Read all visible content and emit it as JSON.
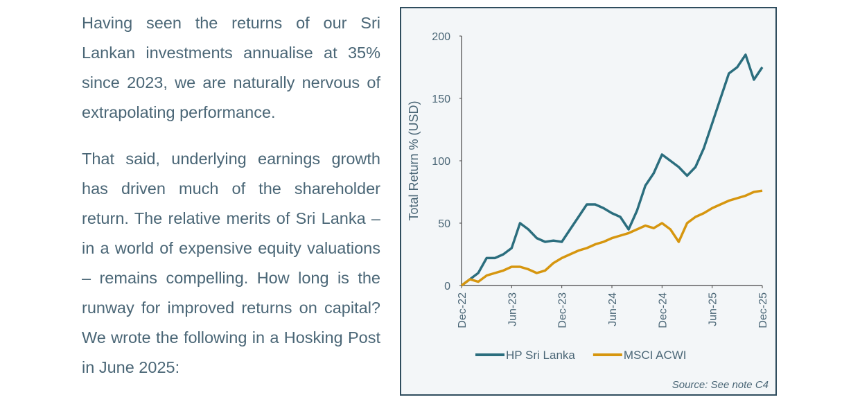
{
  "paragraphs": [
    "Having seen the returns of our Sri Lankan investments annualise at 35% since 2023, we are naturally nervous of extrapolating performance.",
    "That said, underlying earnings growth has driven much of the shareholder return. The relative merits of Sri Lanka – in a world of expensive equity valuations – remains compelling. How long is the runway for improved returns on capital? We wrote the following in a Hosking Post in June 2025:"
  ],
  "chart_data": {
    "type": "line",
    "y_label": "Total Return % (USD)",
    "source": "Source: See note C4",
    "categories": [
      "Dec-22",
      null,
      null,
      null,
      null,
      null,
      "Jun-23",
      null,
      null,
      null,
      null,
      null,
      "Dec-23",
      null,
      null,
      null,
      null,
      null,
      "Jun-24",
      null,
      null,
      null,
      null,
      null,
      "Dec-24",
      null,
      null,
      null,
      null,
      null,
      "Jun-25",
      null,
      null,
      null,
      null,
      null,
      "Dec-25"
    ],
    "series": [
      {
        "name": "HP Sri Lanka",
        "color": "#2b6e7e",
        "values": [
          0,
          5,
          10,
          22,
          22,
          25,
          30,
          50,
          45,
          38,
          35,
          36,
          35,
          45,
          55,
          65,
          65,
          62,
          58,
          55,
          45,
          60,
          80,
          90,
          105,
          100,
          95,
          88,
          95,
          110,
          130,
          150,
          170,
          175,
          185,
          165,
          175
        ]
      },
      {
        "name": "MSCI ACWI",
        "color": "#d6960f",
        "values": [
          0,
          5,
          3,
          8,
          10,
          12,
          15,
          15,
          13,
          10,
          12,
          18,
          22,
          25,
          28,
          30,
          33,
          35,
          38,
          40,
          42,
          45,
          48,
          46,
          50,
          45,
          35,
          50,
          55,
          58,
          62,
          65,
          68,
          70,
          72,
          75,
          76
        ]
      }
    ],
    "ylim": [
      0,
      200
    ],
    "yticks": [
      0,
      50,
      100,
      150,
      200
    ]
  }
}
